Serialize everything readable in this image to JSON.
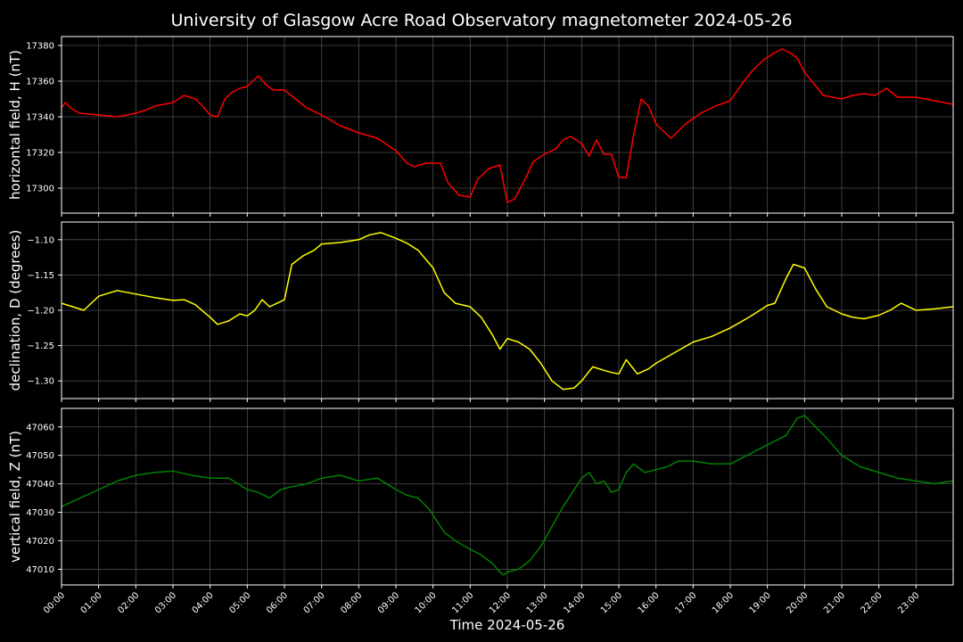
{
  "chart_data": {
    "type": "line",
    "title": "University of Glasgow Acre Road Observatory magnetometer 2024-05-26",
    "xlabel": "Time 2024-05-26",
    "x_unit": "hours",
    "x_range": [
      0,
      24
    ],
    "x_ticks": [
      "00:00",
      "01:00",
      "02:00",
      "03:00",
      "04:00",
      "05:00",
      "06:00",
      "07:00",
      "08:00",
      "09:00",
      "10:00",
      "11:00",
      "12:00",
      "13:00",
      "14:00",
      "15:00",
      "16:00",
      "17:00",
      "18:00",
      "19:00",
      "20:00",
      "21:00",
      "22:00",
      "23:00"
    ],
    "grid": true,
    "panels": [
      {
        "name": "horizontal",
        "ylabel": "horizontal field, H (nT)",
        "ylim": [
          17286,
          17385
        ],
        "yticks": [
          17300,
          17320,
          17340,
          17360,
          17380
        ],
        "color": "#ff0000",
        "x": [
          0,
          0.1,
          0.3,
          0.5,
          1,
          1.5,
          2,
          2.3,
          2.5,
          3,
          3.3,
          3.6,
          3.8,
          4,
          4.2,
          4.4,
          4.6,
          4.8,
          5,
          5.3,
          5.5,
          5.7,
          6,
          6.3,
          6.6,
          7,
          7.5,
          8,
          8.5,
          9,
          9.3,
          9.5,
          9.8,
          10,
          10.2,
          10.4,
          10.7,
          11,
          11.2,
          11.5,
          11.8,
          12,
          12.2,
          12.5,
          12.7,
          13,
          13.3,
          13.5,
          13.7,
          14,
          14.2,
          14.4,
          14.6,
          14.8,
          15,
          15.2,
          15.4,
          15.6,
          15.8,
          16,
          16.4,
          16.8,
          17.2,
          17.6,
          18,
          18.3,
          18.6,
          18.9,
          19.2,
          19.4,
          19.6,
          19.8,
          20,
          20.5,
          21,
          21.3,
          21.6,
          21.9,
          22.2,
          22.5,
          23,
          23.5,
          24
        ],
        "values": [
          17345,
          17348,
          17344,
          17342,
          17341,
          17340,
          17342,
          17344,
          17346,
          17348,
          17352,
          17350,
          17346,
          17341,
          17340,
          17350,
          17354,
          17356,
          17357,
          17363,
          17358,
          17355,
          17355,
          17350,
          17345,
          17341,
          17335,
          17331,
          17328,
          17321,
          17314,
          17312,
          17314,
          17314,
          17314,
          17303,
          17296,
          17295,
          17305,
          17311,
          17313,
          17292,
          17294,
          17306,
          17315,
          17319,
          17322,
          17327,
          17329,
          17325,
          17318,
          17327,
          17319,
          17319,
          17306,
          17306,
          17330,
          17350,
          17346,
          17336,
          17328,
          17336,
          17342,
          17346,
          17349,
          17358,
          17366,
          17372,
          17376,
          17378,
          17376,
          17373,
          17365,
          17352,
          17350,
          17352,
          17353,
          17352,
          17356,
          17351,
          17351,
          17349,
          17347
        ]
      },
      {
        "name": "declination",
        "ylabel": "declination, D (degrees)",
        "ylim": [
          -1.325,
          -1.075
        ],
        "yticks": [
          -1.3,
          -1.25,
          -1.2,
          -1.15,
          -1.1
        ],
        "ytick_labels": [
          "−1.30",
          "−1.25",
          "−1.20",
          "−1.15",
          "−1.10"
        ],
        "color": "#ffff00",
        "x": [
          0,
          0.3,
          0.6,
          1,
          1.5,
          2,
          2.5,
          3,
          3.3,
          3.6,
          4,
          4.2,
          4.5,
          4.8,
          5,
          5.2,
          5.4,
          5.6,
          5.8,
          6,
          6.2,
          6.5,
          6.8,
          7,
          7.5,
          8,
          8.3,
          8.6,
          9,
          9.3,
          9.6,
          10,
          10.3,
          10.6,
          11,
          11.3,
          11.6,
          11.8,
          12,
          12.3,
          12.6,
          12.9,
          13.2,
          13.5,
          13.8,
          14,
          14.3,
          14.6,
          14.8,
          15,
          15.2,
          15.5,
          15.8,
          16,
          16.5,
          17,
          17.5,
          18,
          18.5,
          18.8,
          19,
          19.2,
          19.5,
          19.7,
          20,
          20.3,
          20.6,
          21,
          21.3,
          21.6,
          22,
          22.3,
          22.6,
          23,
          23.5,
          24
        ],
        "values": [
          -1.19,
          -1.195,
          -1.2,
          -1.18,
          -1.172,
          -1.177,
          -1.182,
          -1.186,
          -1.185,
          -1.192,
          -1.21,
          -1.22,
          -1.215,
          -1.205,
          -1.208,
          -1.2,
          -1.185,
          -1.195,
          -1.19,
          -1.185,
          -1.135,
          -1.123,
          -1.115,
          -1.106,
          -1.104,
          -1.1,
          -1.093,
          -1.09,
          -1.098,
          -1.105,
          -1.115,
          -1.14,
          -1.175,
          -1.19,
          -1.195,
          -1.21,
          -1.235,
          -1.255,
          -1.24,
          -1.245,
          -1.255,
          -1.275,
          -1.3,
          -1.312,
          -1.31,
          -1.3,
          -1.28,
          -1.285,
          -1.288,
          -1.29,
          -1.27,
          -1.29,
          -1.283,
          -1.275,
          -1.26,
          -1.245,
          -1.237,
          -1.225,
          -1.21,
          -1.2,
          -1.193,
          -1.19,
          -1.155,
          -1.135,
          -1.14,
          -1.17,
          -1.195,
          -1.205,
          -1.21,
          -1.212,
          -1.207,
          -1.2,
          -1.19,
          -1.2,
          -1.198,
          -1.195
        ]
      },
      {
        "name": "vertical",
        "ylabel": "vertical field, Z (nT)",
        "ylim": [
          47004.5,
          47066.5
        ],
        "yticks": [
          47010,
          47020,
          47030,
          47040,
          47050,
          47060
        ],
        "color": "#008000",
        "x": [
          0,
          0.5,
          1,
          1.5,
          2,
          2.5,
          3,
          3.5,
          4,
          4.5,
          5,
          5.3,
          5.6,
          5.9,
          6.2,
          6.6,
          7,
          7.5,
          8,
          8.5,
          9,
          9.3,
          9.6,
          9.9,
          10.1,
          10.3,
          10.6,
          11,
          11.3,
          11.6,
          11.8,
          11.9,
          12,
          12.3,
          12.6,
          12.9,
          13.2,
          13.5,
          13.8,
          14,
          14.2,
          14.4,
          14.6,
          14.8,
          15,
          15.2,
          15.4,
          15.7,
          16,
          16.3,
          16.6,
          17,
          17.5,
          18,
          18.3,
          18.6,
          18.9,
          19.2,
          19.5,
          19.8,
          20,
          20.3,
          20.6,
          21,
          21.5,
          22,
          22.5,
          23,
          23.5,
          24
        ],
        "values": [
          47032,
          47035,
          47038,
          47041,
          47043,
          47044,
          47044.5,
          47043,
          47042,
          47042,
          47038,
          47037,
          47035,
          47038,
          47039,
          47040,
          47042,
          47043,
          47041,
          47042,
          47038,
          47036,
          47035,
          47031,
          47027,
          47023,
          47020,
          47017,
          47015,
          47012,
          47009,
          47008,
          47009,
          47010,
          47013,
          47018,
          47025,
          47032,
          47038,
          47042,
          47044,
          47040,
          47041,
          47037,
          47038,
          47044,
          47047,
          47044,
          47045,
          47046,
          47048,
          47048,
          47047,
          47047,
          47049,
          47051,
          47053,
          47055,
          47057,
          47063,
          47064,
          47060,
          47056,
          47050,
          47046,
          47044,
          47042,
          47041,
          47040,
          47041
        ]
      }
    ]
  }
}
